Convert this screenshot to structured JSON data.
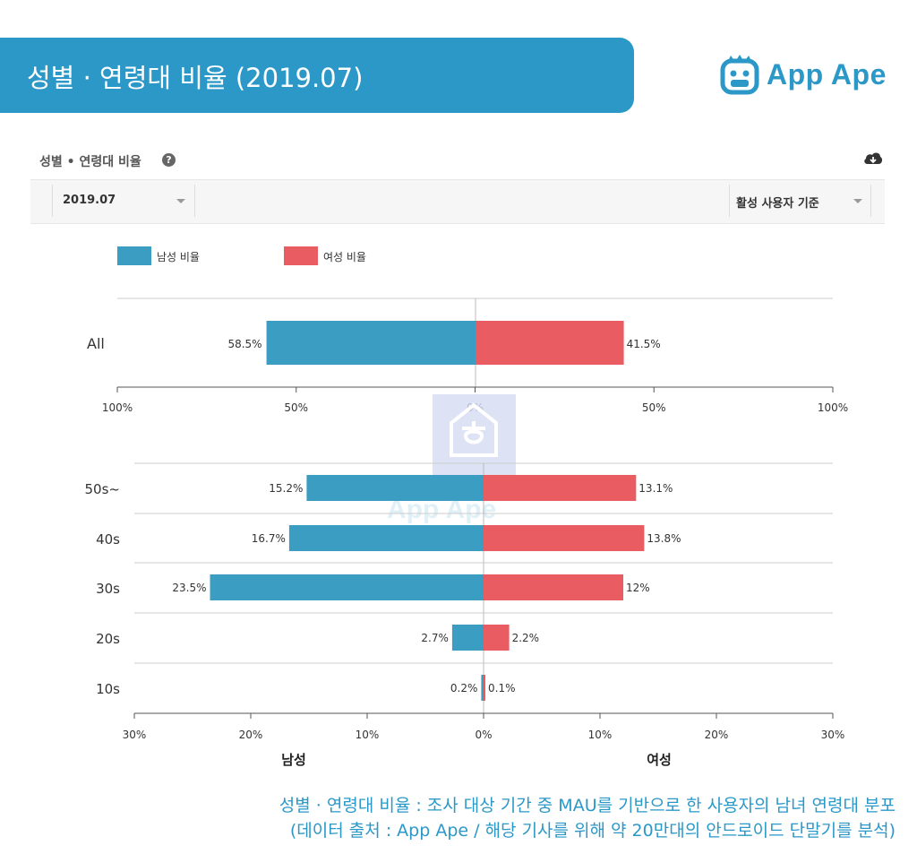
{
  "banner": {
    "title": "성별 · 연령대 비율 (2019.07)"
  },
  "brand": {
    "name": "App Ape",
    "color": "#2b98c8"
  },
  "section": {
    "title": "성별 • 연령대 비율",
    "help_icon": "question-circle-icon",
    "download_icon": "cloud-download-icon"
  },
  "filters": {
    "period": "2019.07",
    "basis": "활성 사용자 기준"
  },
  "caption": {
    "line1": "성별 · 연령대 비율 : 조사 대상 기간 중 MAU를 기반으로 한 사용자의 남녀 연령대 분포",
    "line2": "(데이터 출처 : App Ape / 해당 기사를 위해 약 20만대의 안드로이드 단말기를 분석)"
  },
  "chart_data": [
    {
      "type": "bar",
      "orientation": "horizontal-diverging",
      "categories": [
        "All"
      ],
      "series": [
        {
          "name": "남성 비율",
          "color": "#3a9dc1",
          "values": [
            58.5
          ]
        },
        {
          "name": "여성 비율",
          "color": "#e85c62",
          "values": [
            41.5
          ]
        }
      ],
      "data_labels": {
        "male": [
          "58.5%"
        ],
        "female": [
          "41.5%"
        ]
      },
      "xlim": [
        -100,
        100
      ],
      "xticks": [
        "100%",
        "50%",
        "0%",
        "50%",
        "100%"
      ],
      "legend": "top-left",
      "grid": true
    },
    {
      "type": "bar",
      "orientation": "horizontal-diverging",
      "categories": [
        "50s~",
        "40s",
        "30s",
        "20s",
        "10s"
      ],
      "series": [
        {
          "name": "남성",
          "color": "#3a9dc1",
          "values": [
            15.2,
            16.7,
            23.5,
            2.7,
            0.2
          ]
        },
        {
          "name": "여성",
          "color": "#e85c62",
          "values": [
            13.1,
            13.8,
            12,
            2.2,
            0.1
          ]
        }
      ],
      "data_labels": {
        "male": [
          "15.2%",
          "16.7%",
          "23.5%",
          "2.7%",
          "0.2%"
        ],
        "female": [
          "13.1%",
          "13.8%",
          "12%",
          "2.2%",
          "0.1%"
        ]
      },
      "xlim": [
        -30,
        30
      ],
      "xticks": [
        "30%",
        "20%",
        "10%",
        "0%",
        "10%",
        "20%",
        "30%"
      ],
      "xlabel_left": "남성",
      "xlabel_right": "여성",
      "grid": true
    }
  ]
}
